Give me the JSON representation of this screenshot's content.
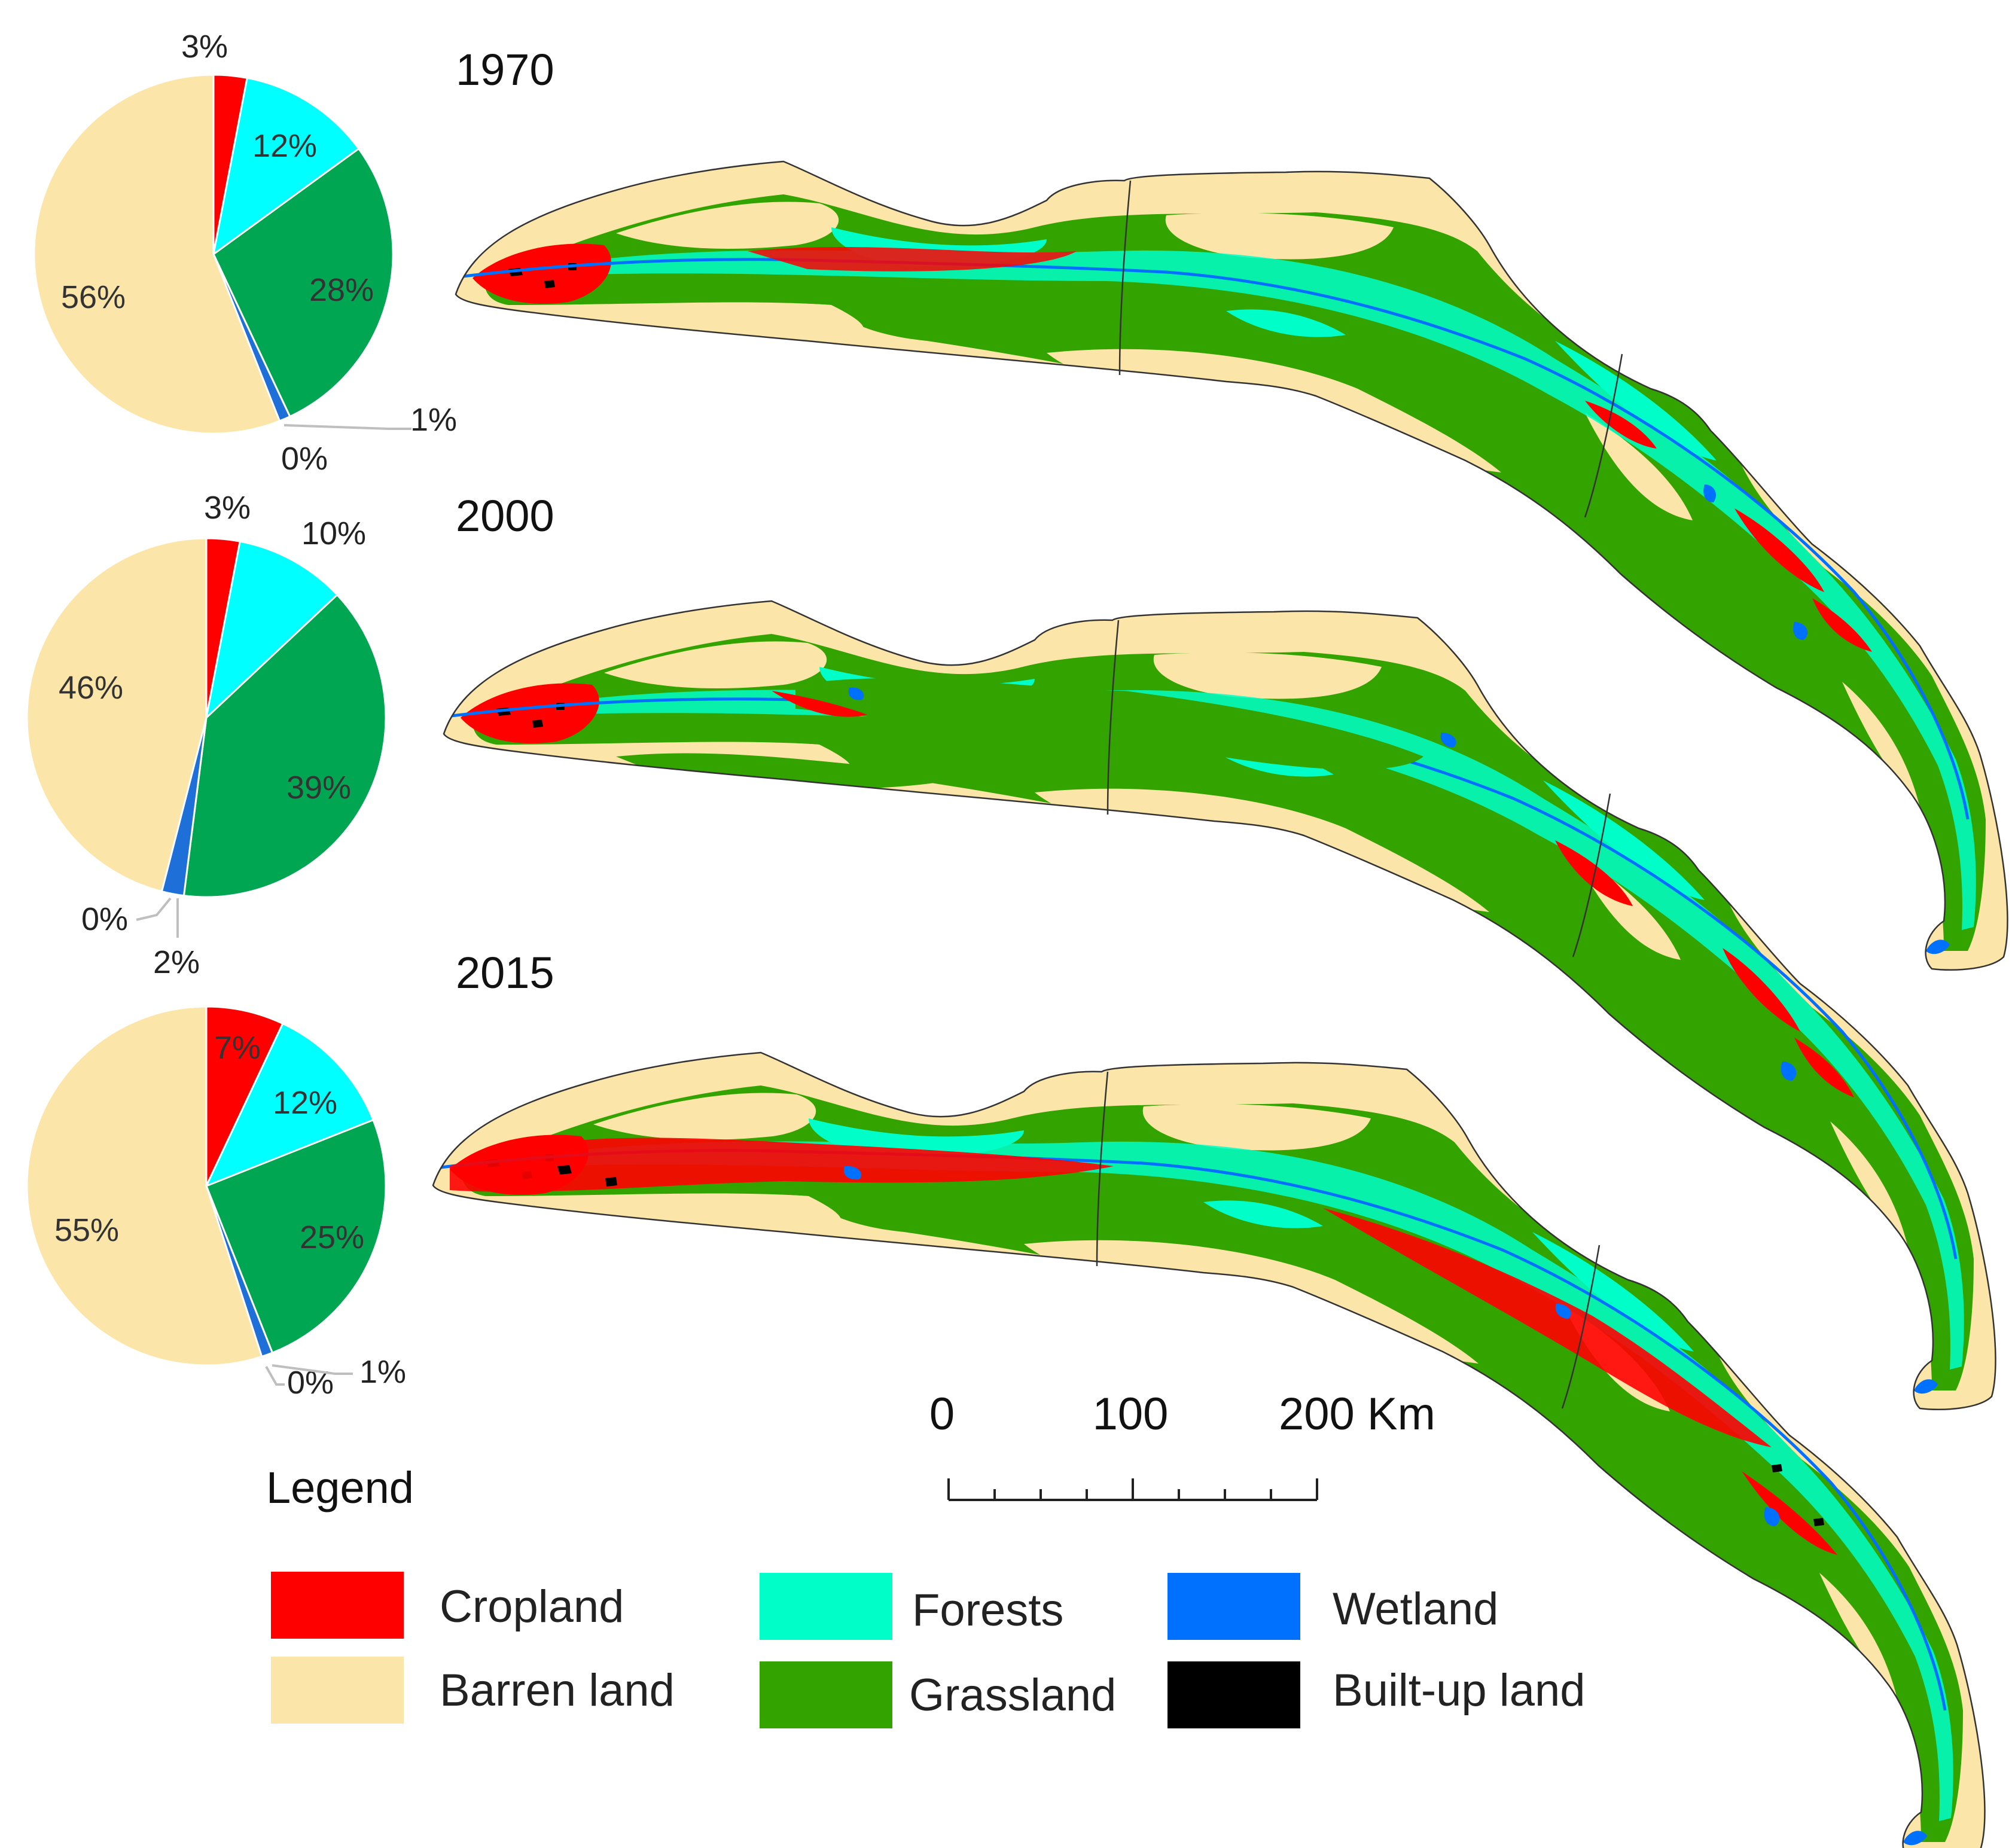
{
  "colors": {
    "cropland": "#ff0000",
    "forests": "#00ffff",
    "grassland": "#00a651",
    "wetland": "#1f6fd8",
    "builtup": "#6f6f6f",
    "barren": "#fce5a8"
  },
  "map_colors": {
    "cropland": "#ff0000",
    "barren": "#fce5a8",
    "forests": "#00ffc8",
    "grassland": "#33a300",
    "wetland": "#0070ff",
    "builtup": "#000000"
  },
  "chart_data": [
    {
      "type": "pie",
      "title": "1970",
      "categories": [
        "Cropland",
        "Forests",
        "Grassland",
        "Wetland",
        "Built-up land",
        "Barren land"
      ],
      "values": [
        3,
        12,
        28,
        1,
        0,
        56
      ],
      "labels": [
        "3%",
        "12%",
        "28%",
        "1%",
        "0%",
        "56%"
      ]
    },
    {
      "type": "pie",
      "title": "2000",
      "categories": [
        "Cropland",
        "Forests",
        "Grassland",
        "Wetland",
        "Built-up land",
        "Barren land"
      ],
      "values": [
        3,
        10,
        39,
        2,
        0,
        46
      ],
      "labels": [
        "3%",
        "10%",
        "39%",
        "2%",
        "0%",
        "46%"
      ]
    },
    {
      "type": "pie",
      "title": "2015",
      "categories": [
        "Cropland",
        "Forests",
        "Grassland",
        "Wetland",
        "Built-up land",
        "Barren land"
      ],
      "values": [
        7,
        12,
        25,
        1,
        0,
        55
      ],
      "labels": [
        "7%",
        "12%",
        "25%",
        "1%",
        "0%",
        "55%"
      ]
    }
  ],
  "legend": {
    "title": "Legend",
    "items": [
      {
        "key": "cropland",
        "label": "Cropland"
      },
      {
        "key": "barren",
        "label": "Barren land"
      },
      {
        "key": "forests",
        "label": "Forests"
      },
      {
        "key": "grassland",
        "label": "Grassland"
      },
      {
        "key": "wetland",
        "label": "Wetland"
      },
      {
        "key": "builtup",
        "label": "Built-up land"
      }
    ]
  },
  "scale_bar": {
    "labels": [
      "0",
      "100",
      "200 Km"
    ]
  }
}
